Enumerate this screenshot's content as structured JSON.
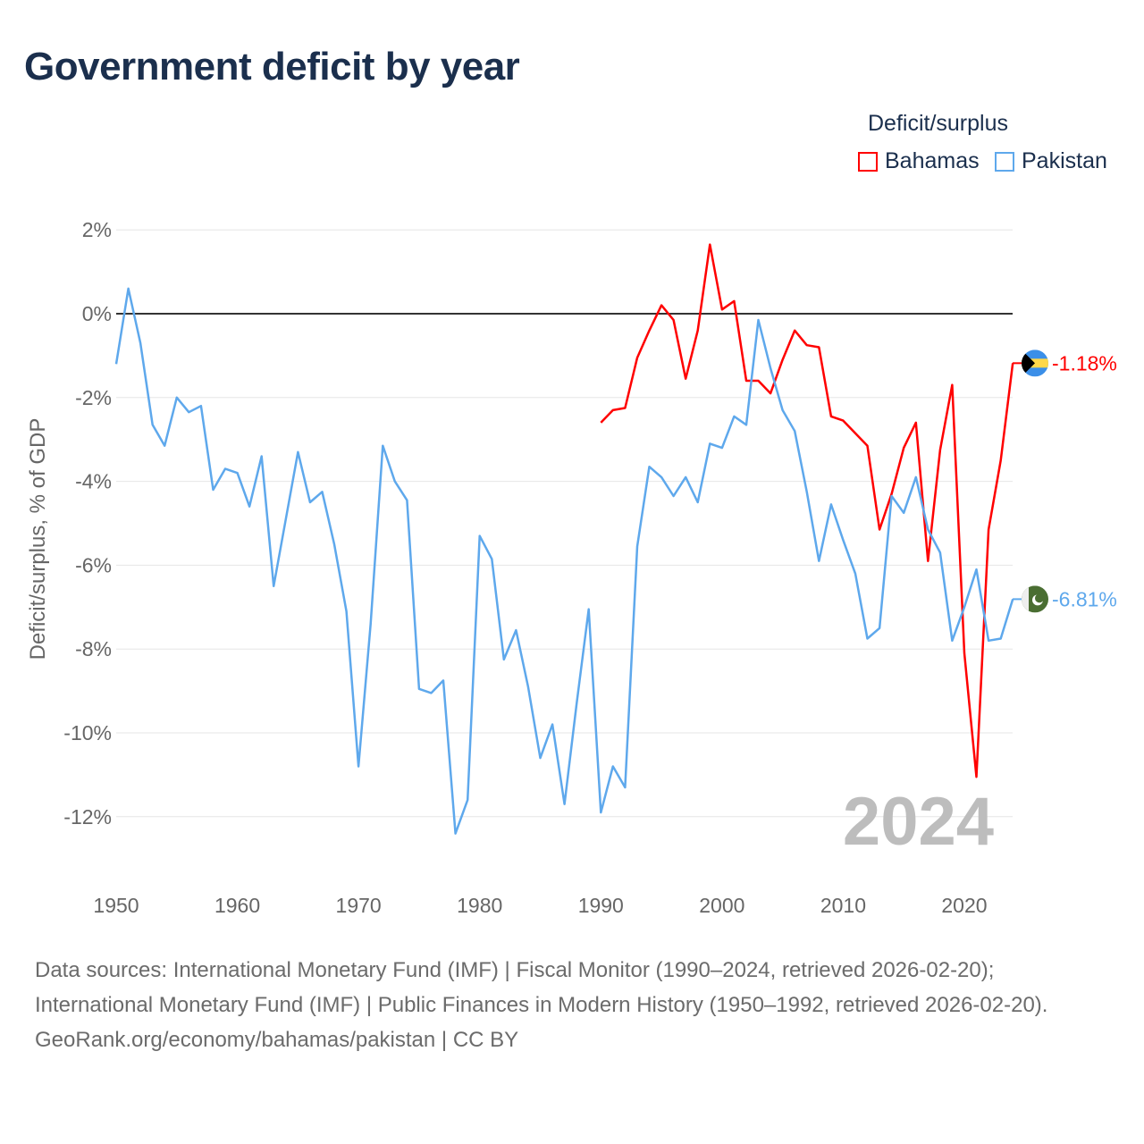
{
  "chart_data": {
    "type": "line",
    "title": "Government deficit by year",
    "xlabel": "",
    "ylabel": "Deficit/surplus, % of GDP",
    "xlim": [
      1950,
      2024
    ],
    "ylim": [
      -13,
      2.5
    ],
    "x_ticks": [
      "1950",
      "1960",
      "1970",
      "1980",
      "1990",
      "2000",
      "2010",
      "2020"
    ],
    "y_ticks": [
      {
        "v": 2,
        "label": "2%"
      },
      {
        "v": 0,
        "label": "0%"
      },
      {
        "v": -2,
        "label": "-2%"
      },
      {
        "v": -4,
        "label": "-4%"
      },
      {
        "v": -6,
        "label": "-6%"
      },
      {
        "v": -8,
        "label": "-8%"
      },
      {
        "v": -10,
        "label": "-10%"
      },
      {
        "v": -12,
        "label": "-12%"
      }
    ],
    "legend_title": "Deficit/surplus",
    "legend_position": "top-right",
    "year_watermark": "2024",
    "series": [
      {
        "name": "Bahamas",
        "color": "#ff0000",
        "start_year": 1990,
        "end_label": "-1.18%",
        "values": [
          -2.6,
          -2.3,
          -2.25,
          -1.05,
          -0.4,
          0.2,
          -0.15,
          -1.55,
          -0.4,
          1.65,
          0.1,
          0.3,
          -1.6,
          -1.6,
          -1.9,
          -1.1,
          -0.4,
          -0.75,
          -0.8,
          -2.45,
          -2.55,
          -2.85,
          -3.15,
          -5.15,
          -4.3,
          -3.2,
          -2.6,
          -5.9,
          -3.25,
          -1.7,
          -8.1,
          -11.05,
          -5.15,
          -3.5,
          -1.18
        ]
      },
      {
        "name": "Pakistan",
        "color": "#5ea8ec",
        "start_year": 1950,
        "end_label": "-6.81%",
        "values": [
          -1.2,
          0.6,
          -0.7,
          -2.65,
          -3.15,
          -2.0,
          -2.35,
          -2.2,
          -4.2,
          -3.7,
          -3.8,
          -4.6,
          -3.4,
          -6.5,
          -4.9,
          -3.3,
          -4.5,
          -4.25,
          -5.5,
          -7.1,
          -10.8,
          -7.4,
          -3.15,
          -4.0,
          -4.45,
          -8.95,
          -9.05,
          -8.75,
          -12.4,
          -11.6,
          -5.3,
          -5.85,
          -8.25,
          -7.55,
          -8.9,
          -10.6,
          -9.8,
          -11.7,
          -9.3,
          -7.05,
          -11.9,
          -10.8,
          -11.3,
          -5.55,
          -3.65,
          -3.9,
          -4.35,
          -3.9,
          -4.5,
          -3.1,
          -3.2,
          -2.45,
          -2.65,
          -0.15,
          -1.3,
          -2.3,
          -2.8,
          -4.25,
          -5.9,
          -4.55,
          -5.4,
          -6.2,
          -7.75,
          -7.5,
          -4.35,
          -4.75,
          -3.9,
          -5.15,
          -5.7,
          -7.8,
          -7.0,
          -6.1,
          -7.8,
          -7.75,
          -6.81
        ]
      }
    ]
  },
  "footer": {
    "sources": "Data sources: International Monetary Fund (IMF) | Fiscal Monitor (1990–2024, retrieved 2026-02-20); International Monetary Fund (IMF) | Public Finances in Modern History (1950–1992, retrieved 2026-02-20).",
    "credit": "GeoRank.org/economy/bahamas/pakistan | CC BY"
  }
}
